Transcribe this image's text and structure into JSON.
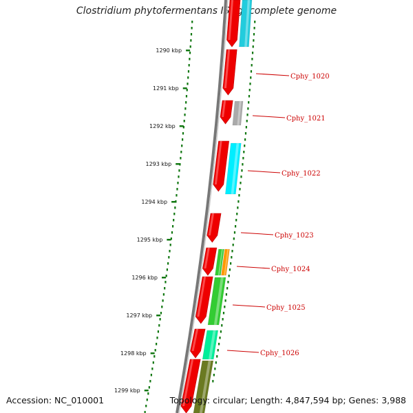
{
  "title": "Clostridium phytofermentans ISDg, complete genome",
  "footer": {
    "accession": "Accession: NC_010001",
    "topology": "Topology: circular; Length: 4,847,594 bp; Genes: 3,988"
  },
  "ticks": [
    "1290 kbp",
    "1291 kbp",
    "1292 kbp",
    "1293 kbp",
    "1294 kbp",
    "1295 kbp",
    "1296 kbp",
    "1297 kbp",
    "1298 kbp",
    "1299 kbp"
  ],
  "gene_labels": [
    "Cphy_1020",
    "Cphy_1021",
    "Cphy_1022",
    "Cphy_1023",
    "Cphy_1024",
    "Cphy_1025",
    "Cphy_1026"
  ],
  "colors": {
    "gene_red": "#ee0000",
    "cog_cyan": "#22ccdd",
    "cog_gray": "#aaaaaa",
    "cog_bright_cyan": "#00eeff",
    "cog_green": "#33cc33",
    "cog_orange": "#ff9900",
    "cog_teal": "#00ee99",
    "cog_olive": "#6b7a22",
    "dotted_track": "#117711",
    "label_red": "#cc0000"
  }
}
